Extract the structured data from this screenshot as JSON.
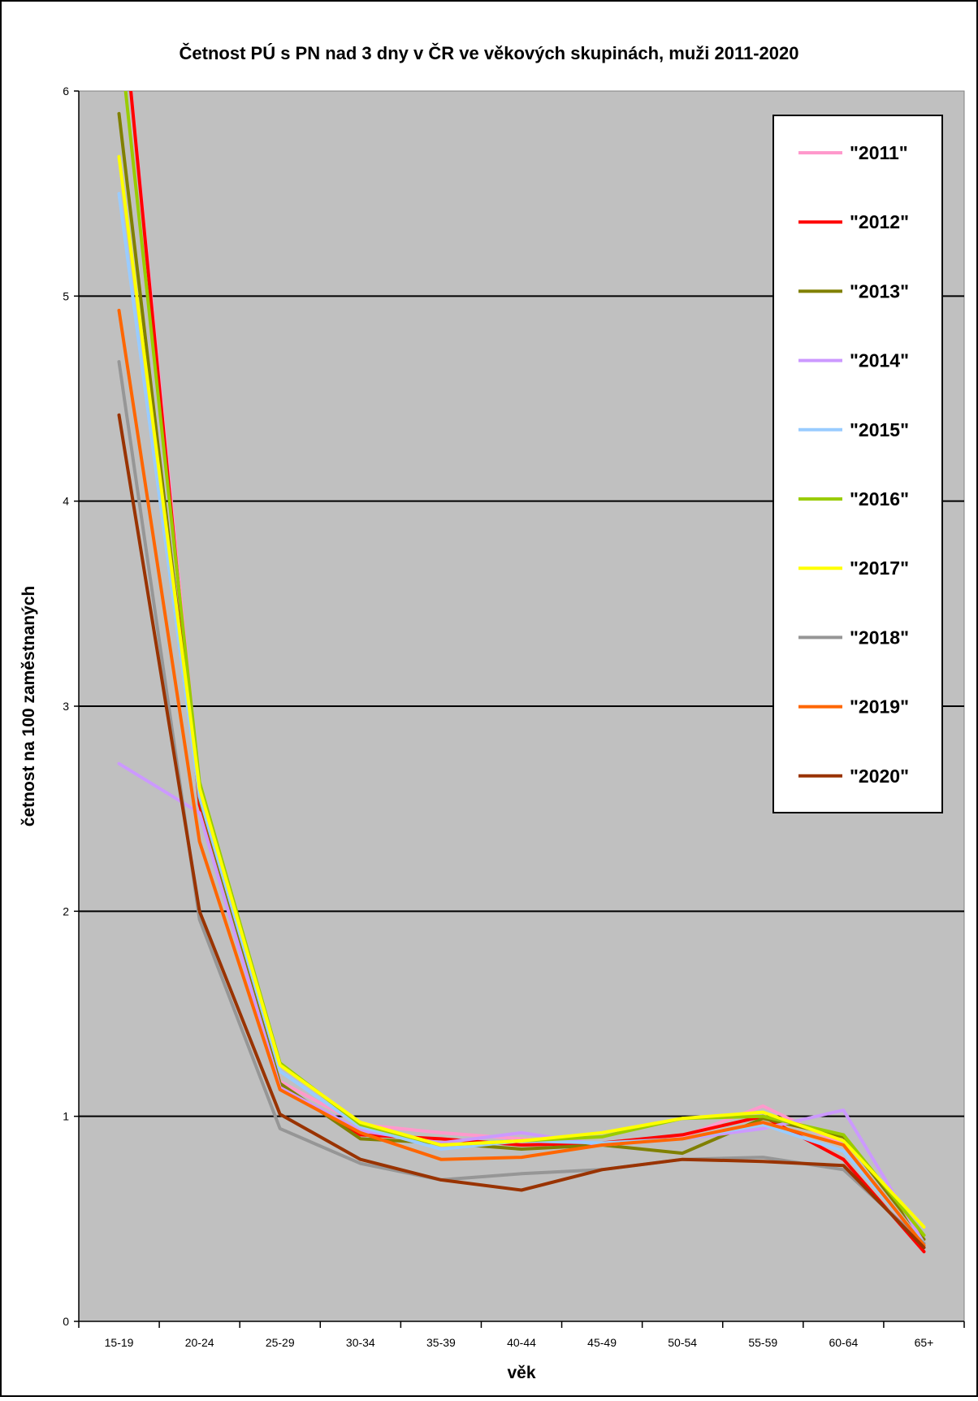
{
  "chart_data": {
    "type": "line",
    "title": "Četnost PÚ s PN nad 3 dny v ČR ve věkových skupinách, muži 2011-2020",
    "xlabel": "věk",
    "ylabel": "četnost na 100 zaměstnaných",
    "ylim": [
      0,
      6
    ],
    "yticks": [
      "0",
      "1",
      "2",
      "3",
      "4",
      "5",
      "6"
    ],
    "grid": true,
    "legend": "right",
    "plot_background": "#c0c0c0",
    "categories": [
      "15-19",
      "20-24",
      "25-29",
      "30-34",
      "35-39",
      "40-44",
      "45-49",
      "50-54",
      "55-59",
      "60-64",
      "65+"
    ],
    "series": [
      {
        "name": "\"2011\"",
        "color": "#ff99cc",
        "values": [
          6.6,
          2.6,
          1.17,
          0.96,
          0.92,
          0.89,
          0.86,
          0.9,
          1.05,
          0.86,
          0.36
        ]
      },
      {
        "name": "\"2012\"",
        "color": "#ff0000",
        "values": [
          6.6,
          2.52,
          1.15,
          0.91,
          0.89,
          0.86,
          0.87,
          0.91,
          1.0,
          0.79,
          0.34
        ]
      },
      {
        "name": "\"2013\"",
        "color": "#808000",
        "values": [
          5.89,
          2.55,
          1.16,
          0.89,
          0.87,
          0.84,
          0.86,
          0.82,
          0.99,
          0.9,
          0.4
        ]
      },
      {
        "name": "\"2014\"",
        "color": "#cc99ff",
        "values": [
          2.72,
          2.48,
          1.14,
          0.93,
          0.87,
          0.92,
          0.86,
          0.89,
          0.94,
          1.03,
          0.38
        ]
      },
      {
        "name": "\"2015\"",
        "color": "#99ccff",
        "values": [
          5.5,
          2.56,
          1.22,
          0.95,
          0.84,
          0.88,
          0.87,
          0.89,
          0.96,
          0.83,
          0.38
        ]
      },
      {
        "name": "\"2016\"",
        "color": "#99cc00",
        "values": [
          6.3,
          2.63,
          1.26,
          0.96,
          0.86,
          0.88,
          0.9,
          0.99,
          1.0,
          0.91,
          0.42
        ]
      },
      {
        "name": "\"2017\"",
        "color": "#ffff00",
        "values": [
          5.68,
          2.6,
          1.25,
          0.97,
          0.86,
          0.88,
          0.92,
          0.99,
          1.02,
          0.88,
          0.46
        ]
      },
      {
        "name": "\"2018\"",
        "color": "#969696",
        "values": [
          4.68,
          1.96,
          0.94,
          0.77,
          0.69,
          0.72,
          0.74,
          0.79,
          0.8,
          0.74,
          0.38
        ]
      },
      {
        "name": "\"2019\"",
        "color": "#ff6600",
        "values": [
          4.93,
          2.34,
          1.13,
          0.92,
          0.79,
          0.8,
          0.86,
          0.89,
          0.97,
          0.86,
          0.37
        ]
      },
      {
        "name": "\"2020\"",
        "color": "#993300",
        "values": [
          4.42,
          2.0,
          1.01,
          0.79,
          0.69,
          0.64,
          0.74,
          0.79,
          0.78,
          0.76,
          0.36
        ]
      }
    ]
  }
}
